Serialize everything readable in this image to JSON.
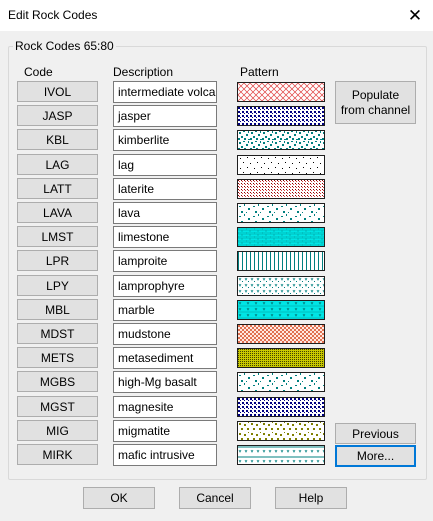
{
  "window": {
    "title": "Edit Rock Codes",
    "close": "✕"
  },
  "group": {
    "title": "Rock Codes 65:80"
  },
  "headers": {
    "code": "Code",
    "description": "Description",
    "pattern": "Pattern"
  },
  "rows": [
    {
      "code": "IVOL",
      "description": "intermediate volcani",
      "pattern": "diag-hatch-red"
    },
    {
      "code": "JASP",
      "description": "jasper",
      "pattern": "dots-navy"
    },
    {
      "code": "KBL",
      "description": "kimberlite",
      "pattern": "speckle-teal-dense"
    },
    {
      "code": "LAG",
      "description": "lag",
      "pattern": "sparse-dots-black"
    },
    {
      "code": "LATT",
      "description": "laterite",
      "pattern": "fine-dots-maroon"
    },
    {
      "code": "LAVA",
      "description": "lava",
      "pattern": "speckle-teal"
    },
    {
      "code": "LMST",
      "description": "limestone",
      "pattern": "brick-cyan"
    },
    {
      "code": "LPR",
      "description": "lamproite",
      "pattern": "vertical-lines-teal"
    },
    {
      "code": "LPY",
      "description": "lamprophyre",
      "pattern": "v-marks-teal"
    },
    {
      "code": "MBL",
      "description": "marble",
      "pattern": "brick-cyan-marks"
    },
    {
      "code": "MDST",
      "description": "mudstone",
      "pattern": "dots-salmon"
    },
    {
      "code": "METS",
      "description": "metasediment",
      "pattern": "dense-olive"
    },
    {
      "code": "MGBS",
      "description": "high-Mg basalt",
      "pattern": "speckle-teal"
    },
    {
      "code": "MGST",
      "description": "magnesite",
      "pattern": "dots-navy"
    },
    {
      "code": "MIG",
      "description": "migmatite",
      "pattern": "speckle-olive"
    },
    {
      "code": "MIRK",
      "description": "mafic intrusive",
      "pattern": "v-marks-teal-top"
    }
  ],
  "buttons": {
    "populate": "Populate from channel",
    "previous": "Previous",
    "more": "More...",
    "ok": "OK",
    "cancel": "Cancel",
    "help": "Help"
  },
  "colors": {
    "accent": "#0078d7",
    "teal": "#008080",
    "cyan": "#00e5e5",
    "navy": "#000080",
    "red": "#e04040",
    "olive": "#808000",
    "salmon": "#e07050",
    "maroon": "#800000"
  }
}
